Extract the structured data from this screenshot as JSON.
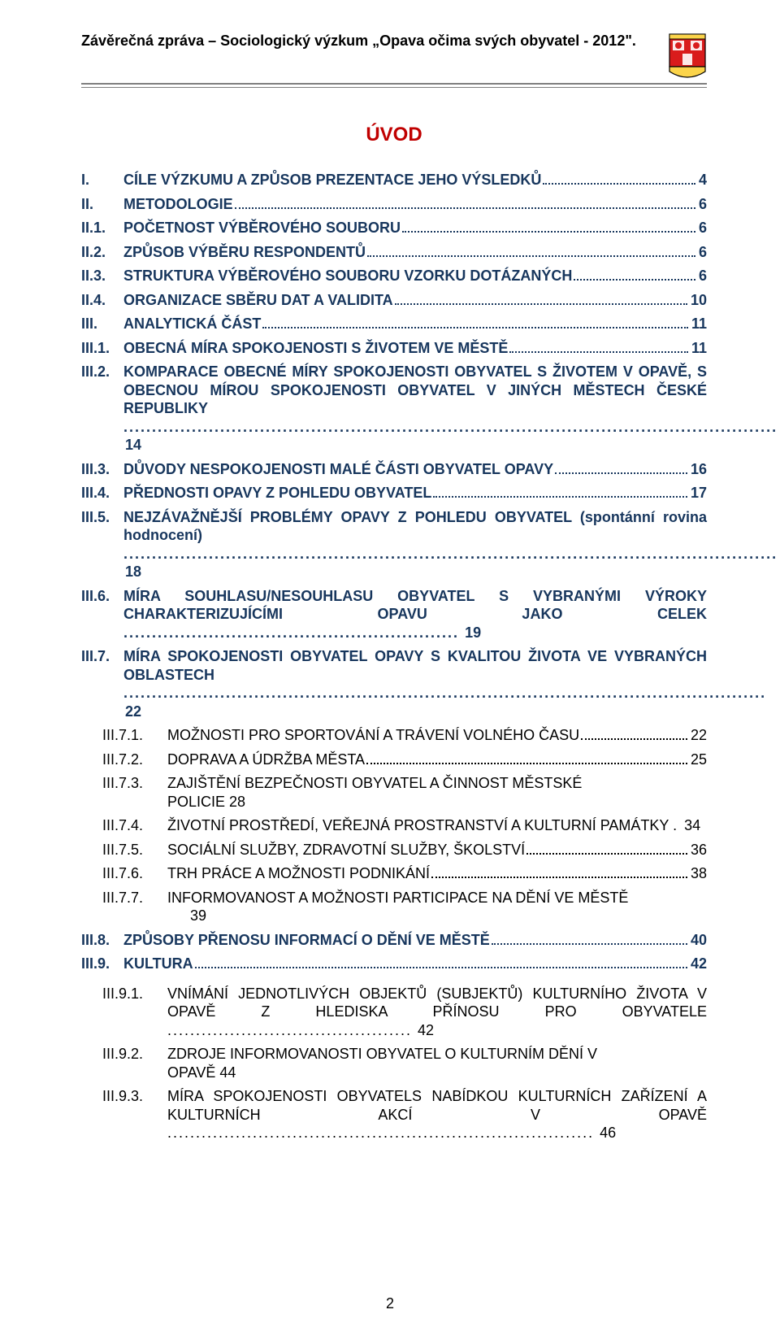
{
  "header": "Závěrečná zpráva – Sociologický výzkum „Opava očima svých obyvatel - 2012\".",
  "title": "ÚVOD",
  "page_number": "2",
  "colors": {
    "title": "#c00000",
    "blue": "#17365d",
    "black": "#000000",
    "rule": "#7f7f7f",
    "crest_shield": "#d91c1c",
    "crest_base": "#fbd44a"
  },
  "crest": {
    "width": 48,
    "height": 58
  },
  "entries": [
    {
      "num": "I.",
      "indent": 0,
      "label": "CÍLE VÝZKUMU A ZPŮSOB PREZENTACE JEHO VÝSLEDKŮ",
      "page": "4",
      "style": "blue"
    },
    {
      "num": "II.",
      "indent": 0,
      "label": "METODOLOGIE",
      "page": "6",
      "style": "blue"
    },
    {
      "num": "II.1.",
      "indent": 1,
      "label": "POČETNOST VÝBĚROVÉHO SOUBORU",
      "page": "6",
      "style": "blue"
    },
    {
      "num": "II.2.",
      "indent": 1,
      "label": "ZPŮSOB VÝBĚRU RESPONDENTŮ",
      "page": "6",
      "style": "blue"
    },
    {
      "num": "II.3.",
      "indent": 1,
      "label": "STRUKTURA VÝBĚROVÉHO SOUBORU VZORKU DOTÁZANÝCH",
      "page": "6",
      "style": "blue"
    },
    {
      "num": "II.4.",
      "indent": 1,
      "label": "ORGANIZACE SBĚRU DAT A VALIDITA",
      "page": "10",
      "style": "blue"
    },
    {
      "num": "III.",
      "indent": 0,
      "label": "ANALYTICKÁ ČÁST",
      "page": "11",
      "style": "blue"
    },
    {
      "num": "III.1.",
      "indent": 1,
      "label": "OBECNÁ MÍRA SPOKOJENOSTI S ŽIVOTEM VE MĚSTĚ",
      "page": "11",
      "style": "blue"
    },
    {
      "num": "III.2.",
      "indent": 1,
      "label": "KOMPARACE OBECNÉ MÍRY SPOKOJENOSTI OBYVATEL S ŽIVOTEM V OPAVĚ, S OBECNOU MÍROU SPOKOJENOSTI OBYVATEL V JINÝCH MĚSTECH ČESKÉ REPUBLIKY",
      "page": "14",
      "style": "blue",
      "multi": true
    },
    {
      "num": "III.3.",
      "indent": 1,
      "label": "DŮVODY NESPOKOJENOSTI MALÉ ČÁSTI OBYVATEL OPAVY",
      "page": "16",
      "style": "blue"
    },
    {
      "num": "III.4.",
      "indent": 1,
      "label": "PŘEDNOSTI OPAVY Z POHLEDU OBYVATEL",
      "page": "17",
      "style": "blue"
    },
    {
      "num": "III.5.",
      "indent": 1,
      "label": "NEJZÁVAŽNĚJŠÍ PROBLÉMY OPAVY Z POHLEDU OBYVATEL (spontánní rovina hodnocení)",
      "page": "18",
      "style": "blue",
      "multi": true
    },
    {
      "num": "III.6.",
      "indent": 1,
      "label": "MÍRA SOUHLASU/NESOUHLASU OBYVATEL S VYBRANÝMI VÝROKY CHARAKTERIZUJÍCÍMI OPAVU JAKO CELEK",
      "page": "19",
      "style": "blue",
      "multi": true
    },
    {
      "num": "III.7.",
      "indent": 1,
      "label": "MÍRA SPOKOJENOSTI OBYVATEL OPAVY S KVALITOU ŽIVOTA VE VYBRANÝCH OBLASTECH",
      "page": "22",
      "style": "blue",
      "multi": true
    },
    {
      "num": "III.7.1.",
      "indent": 2,
      "label": "MOŽNOSTI PRO SPORTOVÁNÍ A TRÁVENÍ VOLNÉHO ČASU",
      "page": "22",
      "style": "black"
    },
    {
      "num": "III.7.2.",
      "indent": 2,
      "label": "DOPRAVA A ÚDRŽBA MĚSTA",
      "page": "25",
      "style": "black"
    },
    {
      "num": "III.7.3.",
      "indent": 2,
      "label": "ZAJIŠTĚNÍ BEZPEČNOSTI OBYVATEL A ČINNOST MĚSTSKÉ POLICIE",
      "page_inline": "28",
      "style": "black",
      "multi": true
    },
    {
      "num": "III.7.4.",
      "indent": 2,
      "label": "ŽIVOTNÍ PROSTŘEDÍ, VEŘEJNÁ PROSTRANSTVÍ A KULTURNÍ PAMÁTKY",
      "page": "34",
      "style": "black",
      "multi": true
    },
    {
      "num": "III.7.5.",
      "indent": 2,
      "label": "SOCIÁLNÍ SLUŽBY, ZDRAVOTNÍ SLUŽBY, ŠKOLSTVÍ",
      "page": "36",
      "style": "black"
    },
    {
      "num": "III.7.6.",
      "indent": 2,
      "label": "TRH PRÁCE A MOŽNOSTI PODNIKÁNÍ",
      "page": "38",
      "style": "black"
    },
    {
      "num": "III.7.7.",
      "indent": 2,
      "label": "INFORMOVANOST A MOŽNOSTI PARTICIPACE NA DĚNÍ VE MĚSTĚ",
      "page_inline": "39",
      "style": "black",
      "multi_nodots": true
    },
    {
      "num": "III.8.",
      "indent": 1,
      "label": "ZPŮSOBY PŘENOSU INFORMACÍ O DĚNÍ VE MĚSTĚ",
      "page": "40",
      "style": "blue"
    },
    {
      "num": "III.9.",
      "indent": 1,
      "label": "KULTURA",
      "page": "42",
      "style": "blue"
    },
    {
      "num": "III.9.1.",
      "indent": 2,
      "label": "VNÍMÁNÍ JEDNOTLIVÝCH OBJEKTŮ (SUBJEKTŮ) KULTURNÍHO ŽIVOTA V OPAVĚ Z HLEDISKA PŘÍNOSU PRO OBYVATELE",
      "page": "42",
      "style": "black",
      "multi": true
    },
    {
      "num": "III.9.2.",
      "indent": 2,
      "label": "ZDROJE INFORMOVANOSTI OBYVATEL O KULTURNÍM DĚNÍ V OPAVĚ",
      "page_inline": "44",
      "style": "black",
      "multi": true
    },
    {
      "num": "III.9.3.",
      "indent": 2,
      "label": "MÍRA SPOKOJENOSTI OBYVATELS NABÍDKOU KULTURNÍCH ZAŘÍZENÍ A KULTURNÍCH AKCÍ V OPAVĚ",
      "page": "46",
      "style": "black",
      "multi": true
    }
  ],
  "fontsize": {
    "body": 18,
    "title": 24,
    "header": 18
  }
}
